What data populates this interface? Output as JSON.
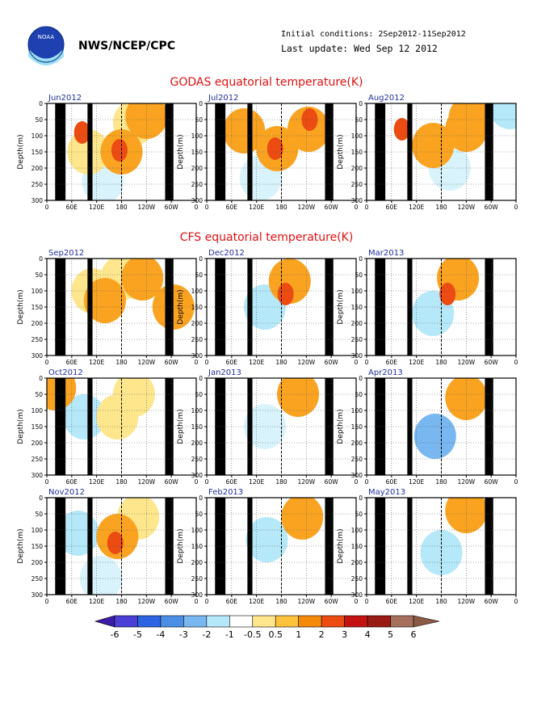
{
  "header": {
    "agency": "NWS/NCEP/CPC",
    "logo_text": "NOAA",
    "initial_conditions": "Initial conditions: 2Sep2012-11Sep2012",
    "last_update": "Last update: Wed Sep 12 2012"
  },
  "colors": {
    "title_red": "#e01010",
    "panel_label_blue": "#2030a0",
    "land_black": "#000000"
  },
  "chart_data": [
    {
      "type": "heatmap",
      "title": "GODAS equatorial temperature(K)",
      "ylabel": "Depth(m)",
      "yticks": [
        "0",
        "50",
        "100",
        "150",
        "200",
        "250",
        "300"
      ],
      "ylim": [
        0,
        300
      ],
      "xticks": [
        "0",
        "60E",
        "120E",
        "180",
        "120W",
        "60W",
        "0"
      ],
      "xlim_deg": [
        0,
        360
      ],
      "panels": [
        {
          "label": "Jun2012",
          "blobs": [
            {
              "lon": 85,
              "depth": 90,
              "level": "3"
            },
            {
              "lon": 100,
              "depth": 150,
              "level": "1"
            },
            {
              "lon": 180,
              "depth": 150,
              "level": "2"
            },
            {
              "lon": 175,
              "depth": 145,
              "level": "3"
            },
            {
              "lon": 210,
              "depth": 60,
              "level": "1"
            },
            {
              "lon": 240,
              "depth": 40,
              "level": "2"
            },
            {
              "lon": 135,
              "depth": 240,
              "level": "-0.5"
            }
          ]
        },
        {
          "label": "Jul2012",
          "blobs": [
            {
              "lon": 90,
              "depth": 85,
              "level": "2"
            },
            {
              "lon": 170,
              "depth": 140,
              "level": "2"
            },
            {
              "lon": 165,
              "depth": 140,
              "level": "3"
            },
            {
              "lon": 245,
              "depth": 80,
              "level": "2"
            },
            {
              "lon": 248,
              "depth": 50,
              "level": "3"
            },
            {
              "lon": 130,
              "depth": 230,
              "level": "-0.5"
            }
          ]
        },
        {
          "label": "Aug2012",
          "blobs": [
            {
              "lon": 85,
              "depth": 80,
              "level": "3"
            },
            {
              "lon": 160,
              "depth": 130,
              "level": "2"
            },
            {
              "lon": 240,
              "depth": 80,
              "level": "2"
            },
            {
              "lon": 248,
              "depth": 45,
              "level": "2"
            },
            {
              "lon": 200,
              "depth": 200,
              "level": "-0.5"
            },
            {
              "lon": 345,
              "depth": 10,
              "level": "-1"
            }
          ]
        }
      ]
    },
    {
      "type": "heatmap",
      "title": "CFS equatorial temperature(K)",
      "ylabel": "Depth(m)",
      "yticks": [
        "0",
        "50",
        "100",
        "150",
        "200",
        "250",
        "300"
      ],
      "ylim": [
        0,
        300
      ],
      "xticks": [
        "0",
        "60E",
        "120E",
        "180",
        "120W",
        "60W",
        "0"
      ],
      "xlim_deg": [
        0,
        360
      ],
      "panels": [
        {
          "label": "Sep2012",
          "blobs": [
            {
              "lon": 110,
              "depth": 100,
              "level": "1"
            },
            {
              "lon": 140,
              "depth": 130,
              "level": "2"
            },
            {
              "lon": 180,
              "depth": 60,
              "level": "1"
            },
            {
              "lon": 230,
              "depth": 60,
              "level": "2"
            },
            {
              "lon": 305,
              "depth": 150,
              "level": "2"
            }
          ]
        },
        {
          "label": "Oct2012",
          "blobs": [
            {
              "lon": 90,
              "depth": 120,
              "level": "-1"
            },
            {
              "lon": 170,
              "depth": 120,
              "level": "1"
            },
            {
              "lon": 210,
              "depth": 50,
              "level": "1"
            },
            {
              "lon": 20,
              "depth": 30,
              "level": "2"
            }
          ]
        },
        {
          "label": "Nov2012",
          "blobs": [
            {
              "lon": 75,
              "depth": 110,
              "level": "-1"
            },
            {
              "lon": 170,
              "depth": 120,
              "level": "2"
            },
            {
              "lon": 165,
              "depth": 140,
              "level": "3"
            },
            {
              "lon": 220,
              "depth": 60,
              "level": "1"
            },
            {
              "lon": 130,
              "depth": 250,
              "level": "-0.5"
            }
          ]
        },
        {
          "label": "Dec2012",
          "blobs": [
            {
              "lon": 140,
              "depth": 150,
              "level": "-1"
            },
            {
              "lon": 200,
              "depth": 70,
              "level": "2"
            },
            {
              "lon": 190,
              "depth": 110,
              "level": "3"
            }
          ]
        },
        {
          "label": "Jan2013",
          "blobs": [
            {
              "lon": 140,
              "depth": 150,
              "level": "-0.5"
            },
            {
              "lon": 220,
              "depth": 50,
              "level": "2"
            }
          ]
        },
        {
          "label": "Feb2013",
          "blobs": [
            {
              "lon": 145,
              "depth": 130,
              "level": "-1"
            },
            {
              "lon": 230,
              "depth": 60,
              "level": "2"
            }
          ]
        },
        {
          "label": "Mar2013",
          "blobs": [
            {
              "lon": 160,
              "depth": 170,
              "level": "-1"
            },
            {
              "lon": 220,
              "depth": 60,
              "level": "2"
            },
            {
              "lon": 195,
              "depth": 110,
              "level": "3"
            }
          ]
        },
        {
          "label": "Apr2013",
          "blobs": [
            {
              "lon": 165,
              "depth": 180,
              "level": "-2"
            },
            {
              "lon": 240,
              "depth": 60,
              "level": "2"
            }
          ]
        },
        {
          "label": "May2013",
          "blobs": [
            {
              "lon": 180,
              "depth": 170,
              "level": "-1"
            },
            {
              "lon": 240,
              "depth": 40,
              "level": "2"
            }
          ]
        }
      ]
    }
  ],
  "colorbar": {
    "labels": [
      "-6",
      "-5",
      "-4",
      "-3",
      "-2",
      "-1",
      "-0.5",
      "0.5",
      "1",
      "2",
      "3",
      "4",
      "5",
      "6"
    ],
    "colors": [
      "#3b1ba8",
      "#4b3fd8",
      "#2c63e0",
      "#4a8ee6",
      "#78b7f0",
      "#b5e8f9",
      "#ffffff",
      "#fde68c",
      "#fcc23b",
      "#f58a0a",
      "#ec4b12",
      "#c41210",
      "#9a1a14",
      "#a56e5d",
      "#8b5a44"
    ],
    "levels": {
      "-2": "#78b7f0",
      "-1": "#b5e8f9",
      "-0.5": "#d8f3fb",
      "1": "#fde68c",
      "2": "#f9a321",
      "3": "#ec4b12"
    }
  },
  "land_masks": [
    {
      "lon_start": 20,
      "lon_end": 45
    },
    {
      "lon_start": 98,
      "lon_end": 110
    },
    {
      "lon_start": 285,
      "lon_end": 305
    }
  ]
}
